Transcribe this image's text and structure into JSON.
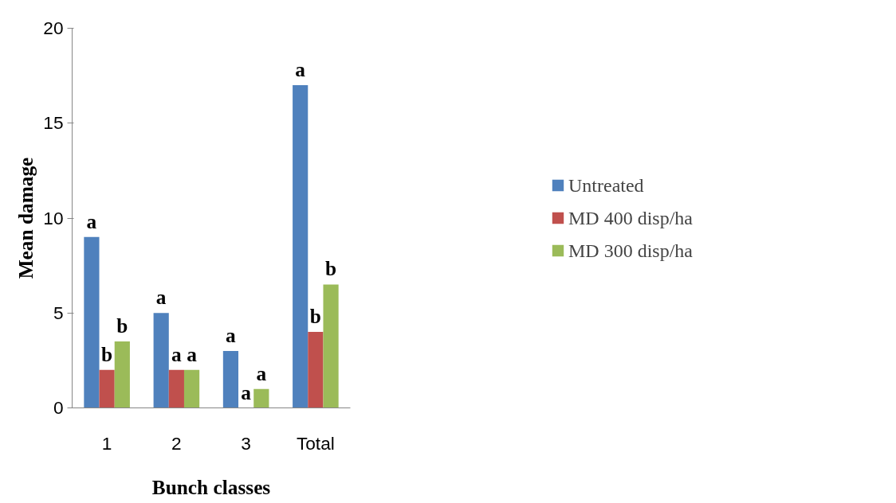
{
  "chart_data": {
    "type": "bar",
    "xlabel": "Bunch classes",
    "ylabel": "Mean damage",
    "categories": [
      "1",
      "2",
      "3",
      "Total"
    ],
    "series": [
      {
        "name": "Untreated",
        "color": "#4f81bd",
        "values": [
          9,
          5,
          3,
          17
        ],
        "value_labels": [
          "a",
          "a",
          "a",
          "a"
        ]
      },
      {
        "name": "MD 400 disp/ha",
        "color": "#c0504d",
        "values": [
          2,
          2,
          0,
          4
        ],
        "value_labels": [
          "b",
          "a",
          "a",
          "b"
        ]
      },
      {
        "name": "MD 300 disp/ha",
        "color": "#9bbb59",
        "values": [
          3.5,
          2,
          1,
          6.5
        ],
        "value_labels": [
          "b",
          "a",
          "a",
          "b"
        ]
      }
    ],
    "ylim": [
      0,
      20
    ],
    "yticks": [
      0,
      5,
      10,
      15,
      20
    ],
    "grid": false,
    "legend": "right"
  }
}
